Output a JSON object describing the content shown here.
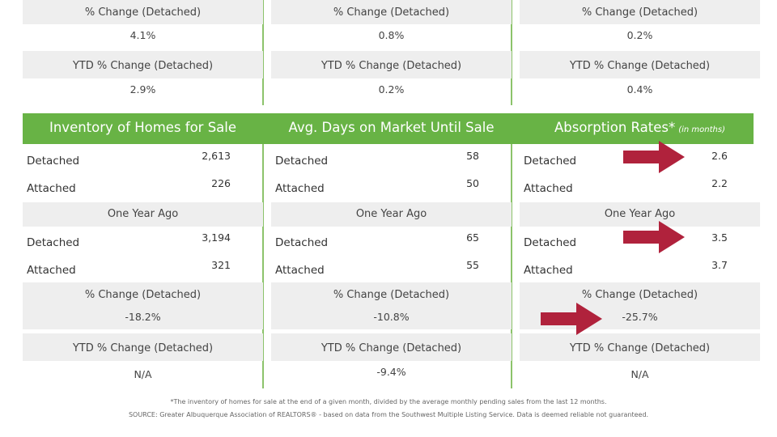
{
  "top": [
    {
      "pct_label": "% Change (Detached)",
      "pct_value": "4.1%",
      "ytd_label": "YTD % Change (Detached)",
      "ytd_value": "2.9%"
    },
    {
      "pct_label": "% Change (Detached)",
      "pct_value": "0.8%",
      "ytd_label": "YTD % Change (Detached)",
      "ytd_value": "0.2%"
    },
    {
      "pct_label": "% Change (Detached)",
      "pct_value": "0.2%",
      "ytd_label": "YTD % Change (Detached)",
      "ytd_value": "0.4%"
    }
  ],
  "sections": [
    {
      "title": "Inventory of Homes for Sale",
      "title_note": "",
      "current": [
        {
          "label": "Detached",
          "value": "2,613"
        },
        {
          "label": "Attached",
          "value": "226"
        }
      ],
      "year_ago_label": "One Year Ago",
      "year_ago": [
        {
          "label": "Detached",
          "value": "3,194"
        },
        {
          "label": "Attached",
          "value": "321"
        }
      ],
      "pct_label": "% Change (Detached)",
      "pct_value": "-18.2%",
      "ytd_label": "YTD % Change (Detached)",
      "ytd_value": "N/A"
    },
    {
      "title": "Avg. Days on Market Until Sale",
      "title_note": "",
      "current": [
        {
          "label": "Detached",
          "value": "58"
        },
        {
          "label": "Attached",
          "value": "50"
        }
      ],
      "year_ago_label": "One Year Ago",
      "year_ago": [
        {
          "label": "Detached",
          "value": "65"
        },
        {
          "label": "Attached",
          "value": "55"
        }
      ],
      "pct_label": "% Change (Detached)",
      "pct_value": "-10.8%",
      "ytd_label": "YTD % Change (Detached)",
      "ytd_value": "-9.4%"
    },
    {
      "title": "Absorption Rates*",
      "title_note": "(in months)",
      "current": [
        {
          "label": "Detached",
          "value": "2.6"
        },
        {
          "label": "Attached",
          "value": "2.2"
        }
      ],
      "year_ago_label": "One Year Ago",
      "year_ago": [
        {
          "label": "Detached",
          "value": "3.5"
        },
        {
          "label": "Attached",
          "value": "3.7"
        }
      ],
      "pct_label": "% Change (Detached)",
      "pct_value": "-25.7%",
      "ytd_label": "YTD % Change (Detached)",
      "ytd_value": "N/A"
    }
  ],
  "footer": {
    "note": "*The inventory of homes for sale at the end of a given month, divided by the average monthly pending sales from the last 12 months.",
    "source": "SOURCE: Greater Albuquerque Association of REALTORS® - based on data from the Southwest Multiple Listing Service. Data is deemed reliable not guaranteed."
  },
  "colors": {
    "header_green": "#68b345",
    "divider_green": "#8cc36b",
    "arrow_red": "#b0223c",
    "panel_gray": "#eeeeee"
  }
}
